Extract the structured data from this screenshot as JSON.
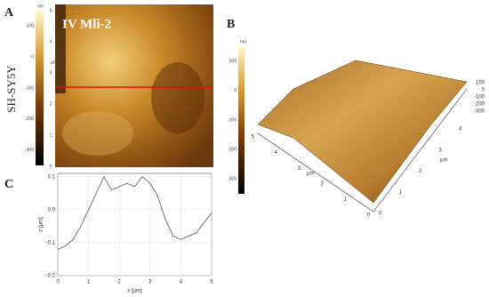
{
  "labels": {
    "a": "A",
    "b": "B",
    "c": "C",
    "row": "SH-SY5Y",
    "sample": "IV Mli-2"
  },
  "colorbar_a": {
    "unit": "nm",
    "range": [
      -350,
      150
    ],
    "ticks": [
      100,
      0,
      -100,
      -200,
      -300
    ]
  },
  "image_a_axis": {
    "unit": "µm",
    "ticks": [
      5,
      4,
      3,
      2,
      1,
      0
    ]
  },
  "colorbar_b": {
    "unit": "nm",
    "range": [
      -350,
      150
    ],
    "ticks": [
      100,
      0,
      -100,
      -200,
      -300
    ]
  },
  "surface_3d": {
    "x_unit": "µm",
    "x_ticks": [
      0,
      1,
      2,
      3,
      4,
      5
    ],
    "y_unit": "µm",
    "y_ticks": [
      0,
      1,
      2,
      3,
      4
    ],
    "z_ticks": [
      100,
      0,
      -100,
      -200,
      -300
    ]
  },
  "chart_data": {
    "type": "line",
    "x_label": "x [µm]",
    "y_label": "z [µm]",
    "x": [
      0,
      0.25,
      0.5,
      0.75,
      1.0,
      1.25,
      1.5,
      1.75,
      2.0,
      2.25,
      2.5,
      2.75,
      3.0,
      3.25,
      3.5,
      3.75,
      4.0,
      4.25,
      4.5,
      4.75,
      5.0
    ],
    "values": [
      -0.12,
      -0.11,
      -0.09,
      -0.05,
      0.0,
      0.05,
      0.1,
      0.06,
      0.07,
      0.08,
      0.07,
      0.1,
      0.08,
      0.04,
      -0.03,
      -0.08,
      -0.09,
      -0.08,
      -0.07,
      -0.04,
      -0.01
    ],
    "color": "#555555",
    "xlim": [
      0,
      5
    ],
    "ylim": [
      -0.2,
      0.11
    ],
    "xticks": [
      0,
      1,
      2,
      3,
      4,
      5
    ],
    "yticks": [
      -0.2,
      -0.1,
      {
        "value": 0,
        "label": "0.0"
      },
      0.1
    ],
    "grid": true
  }
}
